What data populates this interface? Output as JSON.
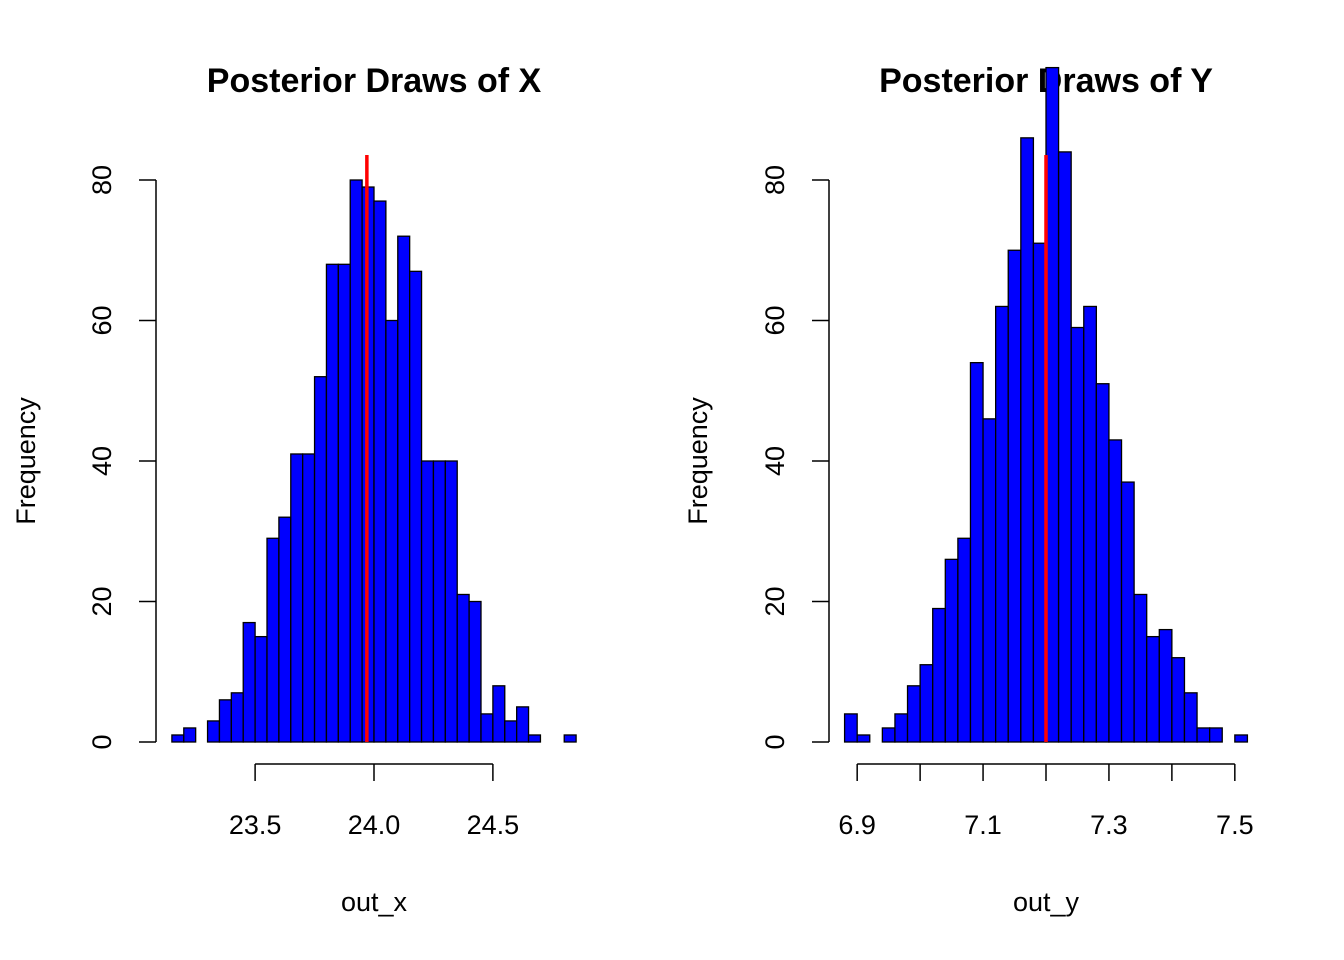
{
  "colors": {
    "bar_fill": "#0000ff",
    "bar_stroke": "#000000",
    "ref_line": "#ff0000",
    "background": "#ffffff"
  },
  "chart_data": [
    {
      "type": "bar",
      "subtype": "histogram",
      "title": "Posterior Draws of X",
      "xlabel": "out_x",
      "ylabel": "Frequency",
      "xlim": [
        23.1,
        24.9
      ],
      "ylim": [
        0,
        83
      ],
      "bin_width": 0.05,
      "bin_edges_start": 23.15,
      "values": [
        1,
        2,
        0,
        3,
        6,
        7,
        17,
        15,
        29,
        32,
        41,
        41,
        52,
        68,
        68,
        80,
        79,
        77,
        60,
        72,
        67,
        40,
        40,
        40,
        21,
        20,
        4,
        8,
        3,
        5,
        1,
        0,
        0,
        1
      ],
      "xticks": [
        "23.5",
        "24.0",
        "24.5"
      ],
      "xtick_values": [
        23.5,
        24.0,
        24.5
      ],
      "yticks": [
        "0",
        "20",
        "40",
        "60",
        "80"
      ],
      "ytick_values": [
        0,
        20,
        40,
        60,
        80
      ],
      "ref_line_x": 23.97
    },
    {
      "type": "bar",
      "subtype": "histogram",
      "title": "Posterior Draws of Y",
      "xlabel": "out_y",
      "ylabel": "Frequency",
      "xlim": [
        6.86,
        7.54
      ],
      "ylim": [
        0,
        100
      ],
      "bin_width": 0.02,
      "bin_edges_start": 6.88,
      "values": [
        4,
        1,
        0,
        2,
        4,
        8,
        11,
        19,
        26,
        29,
        54,
        46,
        62,
        70,
        86,
        71,
        96,
        84,
        59,
        62,
        51,
        43,
        37,
        21,
        15,
        16,
        12,
        7,
        2,
        2,
        0,
        1
      ],
      "xticks": [
        "6.9",
        "7.1",
        "7.3",
        "7.5"
      ],
      "xtick_values": [
        6.9,
        7.1,
        7.3,
        7.5
      ],
      "extra_xtick_marks": [
        7.0,
        7.2,
        7.4
      ],
      "yticks": [
        "0",
        "20",
        "40",
        "60",
        "80"
      ],
      "ytick_values": [
        0,
        20,
        40,
        60,
        80
      ],
      "ref_line_x": 7.2
    }
  ]
}
